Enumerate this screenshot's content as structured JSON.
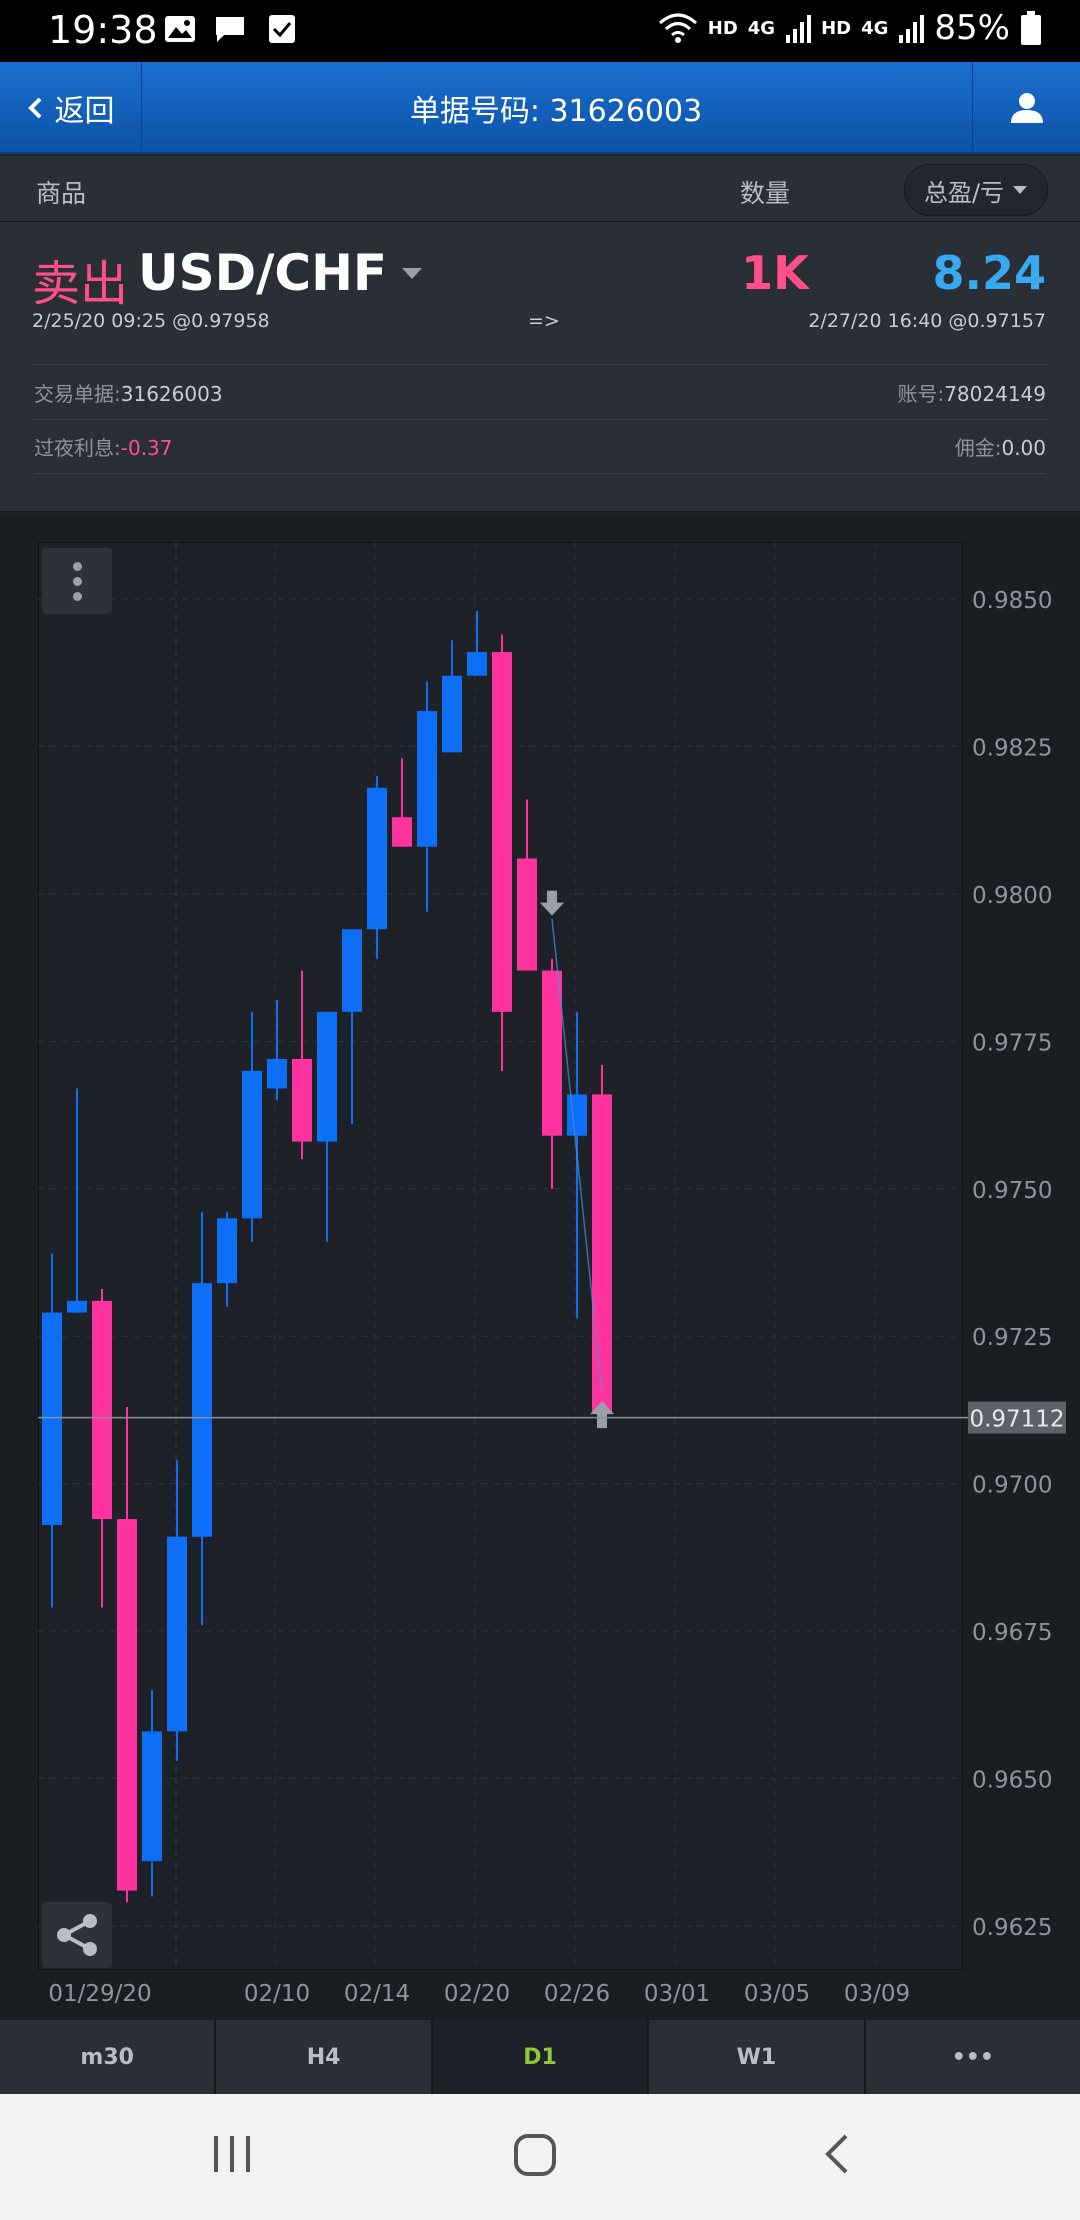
{
  "status_bar": {
    "time": "19:38",
    "net1": "HD",
    "net1_gen": "4G",
    "net2": "HD",
    "net2_gen": "4G",
    "battery": "85%"
  },
  "header": {
    "back_label": "返回",
    "title": "单据号码: 31626003",
    "user_icon": "user-icon"
  },
  "columns": {
    "product": "商品",
    "quantity": "数量",
    "pnl_dropdown": "总盈/亏"
  },
  "trade": {
    "side": "卖出",
    "symbol": "USD/CHF",
    "quantity": "1K",
    "profit": "8.24",
    "open_info": "2/25/20 09:25 @0.97958",
    "arrow": "=>",
    "close_info": "2/27/20 16:40 @0.97157",
    "order_label": "交易单据:",
    "order_value": "31626003",
    "account_label": "账号:",
    "account_value": "78024149",
    "swap_label": "过夜利息:",
    "swap_value": "-0.37",
    "commission_label": "佣金:",
    "commission_value": "0.00"
  },
  "colors": {
    "up": "#0d6ff5",
    "down": "#ff33a0",
    "accent_sell": "#ff4f8a",
    "accent_profit": "#3aaaf0",
    "tab_active": "#8dc63f"
  },
  "chart_data": {
    "type": "candlestick",
    "price_axis": [
      "0.9850",
      "0.9825",
      "0.9800",
      "0.9775",
      "0.9750",
      "0.9725",
      "0.9700",
      "0.9675",
      "0.9650",
      "0.9625"
    ],
    "date_axis": [
      "01/29/20",
      "02/10",
      "02/14",
      "02/20",
      "02/26",
      "03/01",
      "03/05",
      "03/09"
    ],
    "current_price": "0.97112",
    "ylim": [
      0.9616,
      0.9859
    ],
    "candles": [
      {
        "o": 0.9693,
        "h": 0.9739,
        "l": 0.9679,
        "c": 0.9729
      },
      {
        "o": 0.9729,
        "h": 0.9767,
        "l": 0.9729,
        "c": 0.9731
      },
      {
        "o": 0.9731,
        "h": 0.9733,
        "l": 0.9679,
        "c": 0.9694
      },
      {
        "o": 0.9694,
        "h": 0.9713,
        "l": 0.9629,
        "c": 0.9631
      },
      {
        "o": 0.9636,
        "h": 0.9665,
        "l": 0.963,
        "c": 0.9658
      },
      {
        "o": 0.9658,
        "h": 0.9704,
        "l": 0.9653,
        "c": 0.9691
      },
      {
        "o": 0.9691,
        "h": 0.9746,
        "l": 0.9676,
        "c": 0.9734
      },
      {
        "o": 0.9734,
        "h": 0.9746,
        "l": 0.973,
        "c": 0.9745
      },
      {
        "o": 0.9745,
        "h": 0.978,
        "l": 0.9741,
        "c": 0.977
      },
      {
        "o": 0.9767,
        "h": 0.9782,
        "l": 0.9765,
        "c": 0.9772
      },
      {
        "o": 0.9772,
        "h": 0.9787,
        "l": 0.9755,
        "c": 0.9758
      },
      {
        "o": 0.9758,
        "h": 0.978,
        "l": 0.9741,
        "c": 0.978
      },
      {
        "o": 0.978,
        "h": 0.9794,
        "l": 0.9761,
        "c": 0.9794
      },
      {
        "o": 0.9794,
        "h": 0.982,
        "l": 0.9789,
        "c": 0.9818
      },
      {
        "o": 0.9813,
        "h": 0.9823,
        "l": 0.9808,
        "c": 0.9808
      },
      {
        "o": 0.9808,
        "h": 0.9836,
        "l": 0.9797,
        "c": 0.9831
      },
      {
        "o": 0.9824,
        "h": 0.9843,
        "l": 0.9824,
        "c": 0.9837
      },
      {
        "o": 0.9837,
        "h": 0.9848,
        "l": 0.9837,
        "c": 0.9841
      },
      {
        "o": 0.9841,
        "h": 0.9844,
        "l": 0.977,
        "c": 0.978
      },
      {
        "o": 0.9806,
        "h": 0.9816,
        "l": 0.9788,
        "c": 0.9787
      },
      {
        "o": 0.9787,
        "h": 0.9789,
        "l": 0.975,
        "c": 0.9759
      },
      {
        "o": 0.9759,
        "h": 0.978,
        "l": 0.9728,
        "c": 0.9766
      },
      {
        "o": 0.9766,
        "h": 0.9771,
        "l": 0.9711,
        "c": 0.9712
      }
    ],
    "entry_marker": {
      "candle": 20,
      "price": 0.97958,
      "direction": "down"
    },
    "exit_marker": {
      "candle": 22,
      "price": 0.97157,
      "direction": "up"
    }
  },
  "timeframes": [
    "m30",
    "H4",
    "D1",
    "W1",
    "•••"
  ],
  "active_timeframe": "D1",
  "nav": {
    "recent_icon": "recent-apps-icon",
    "home_icon": "home-icon",
    "back_icon": "back-icon"
  }
}
